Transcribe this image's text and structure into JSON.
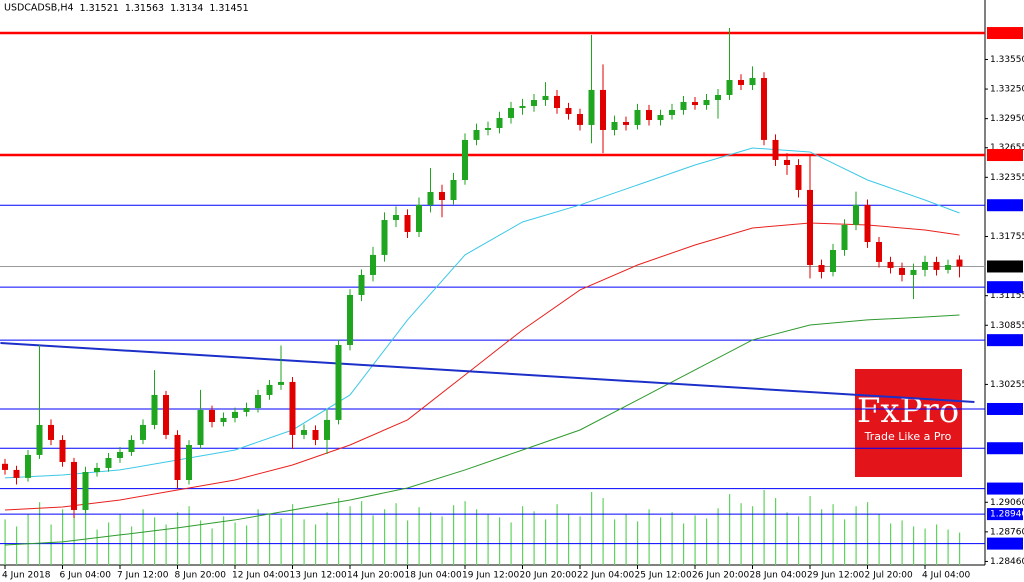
{
  "chart_data": {
    "type": "candlestick",
    "title": "USDCADSB,H4",
    "categories": [
      "4 Jun 2018",
      null,
      null,
      null,
      null,
      "6 Jun 04:00",
      null,
      null,
      null,
      null,
      "7 Jun 12:00",
      null,
      null,
      null,
      null,
      "8 Jun 20:00",
      null,
      null,
      null,
      null,
      "12 Jun 04:00",
      null,
      null,
      null,
      null,
      "13 Jun 12:00",
      null,
      null,
      null,
      null,
      "14 Jun 20:00",
      null,
      null,
      null,
      null,
      "18 Jun 04:00",
      null,
      null,
      null,
      null,
      "19 Jun 12:00",
      null,
      null,
      null,
      null,
      "20 Jun 20:00",
      null,
      null,
      null,
      null,
      "22 Jun 04:00",
      null,
      null,
      null,
      null,
      "25 Jun 12:00",
      null,
      null,
      null,
      null,
      "26 Jun 20:00",
      null,
      null,
      null,
      null,
      "28 Jun 04:00",
      null,
      null,
      null,
      null,
      "29 Jun 12:00",
      null,
      null,
      null,
      null,
      "2 Jul 20:00",
      null,
      null,
      null,
      null,
      "4 Jul 04:00",
      null,
      null,
      null
    ],
    "open": [
      1.2945,
      1.29388,
      1.29307,
      1.2954,
      1.29844,
      1.29692,
      1.29469,
      1.28982,
      1.29367,
      1.29408,
      1.29509,
      1.2957,
      1.29692,
      1.29844,
      1.30148,
      1.29743,
      1.29286,
      1.29641,
      1.29996,
      1.29874,
      1.29915,
      1.29976,
      1.30016,
      1.30148,
      1.3025,
      1.3028,
      1.29743,
      1.29793,
      1.29692,
      1.29895,
      1.30655,
      1.31162,
      1.31365,
      1.31568,
      1.31922,
      1.31973,
      1.31801,
      1.32075,
      1.32206,
      1.32125,
      1.32328,
      1.32734,
      1.32835,
      1.32855,
      1.32957,
      1.33058,
      1.33078,
      1.33139,
      1.3318,
      1.33058,
      1.32997,
      1.32886,
      1.33241,
      1.32835,
      1.32916,
      1.32886,
      1.33038,
      1.32936,
      1.32987,
      1.33038,
      1.33119,
      1.33088,
      1.33139,
      1.3319,
      1.33342,
      1.33291,
      1.33362,
      1.32734,
      1.32531,
      1.3248,
      1.32227,
      1.31466,
      1.31395,
      1.31618,
      1.31872,
      1.32075,
      1.31699,
      1.31497,
      1.31436,
      1.31365,
      1.31416,
      1.31497,
      1.31416,
      1.31521
    ],
    "high": [
      1.295,
      1.2943,
      1.2959,
      1.30655,
      1.299,
      1.2974,
      1.2951,
      1.2942,
      1.2946,
      1.2956,
      1.2962,
      1.2974,
      1.299,
      1.304,
      1.3019,
      1.2979,
      1.2969,
      1.302,
      1.3004,
      1.2997,
      1.3002,
      1.3007,
      1.302,
      1.303,
      1.3065,
      1.3033,
      1.2985,
      1.2984,
      1.3,
      1.3071,
      1.3122,
      1.3142,
      1.3165,
      1.32,
      1.3206,
      1.3203,
      1.3215,
      1.3245,
      1.3228,
      1.324,
      1.328,
      1.329,
      1.3292,
      1.3302,
      1.3312,
      1.3315,
      1.332,
      1.3332,
      1.3324,
      1.3311,
      1.3305,
      1.338,
      1.335,
      1.3298,
      1.3297,
      1.331,
      1.3309,
      1.3304,
      1.331,
      1.3318,
      1.3317,
      1.332,
      1.3325,
      1.33869,
      1.334,
      1.3348,
      1.3342,
      1.3279,
      1.326,
      1.3254,
      1.3258,
      1.3152,
      1.3168,
      1.3193,
      1.3221,
      1.3213,
      1.3175,
      1.3155,
      1.3149,
      1.3148,
      1.3156,
      1.3155,
      1.3152,
      1.31563
    ],
    "low": [
      1.2934,
      1.2924,
      1.2927,
      1.295,
      1.2964,
      1.2942,
      1.289,
      1.2894,
      1.2932,
      1.2937,
      1.2946,
      1.2953,
      1.2965,
      1.298,
      1.297,
      1.292,
      1.2924,
      1.296,
      1.2982,
      1.2983,
      1.2987,
      1.2993,
      1.2997,
      1.301,
      1.302,
      1.296,
      1.297,
      1.2964,
      1.2955,
      1.2985,
      1.306,
      1.311,
      1.313,
      1.315,
      1.3185,
      1.3174,
      1.3175,
      1.32,
      1.3195,
      1.3208,
      1.3228,
      1.3268,
      1.3278,
      1.328,
      1.329,
      1.3299,
      1.3302,
      1.3308,
      1.33,
      1.3294,
      1.3283,
      1.327,
      1.326,
      1.3278,
      1.3283,
      1.3284,
      1.3288,
      1.3288,
      1.3294,
      1.3299,
      1.3304,
      1.3304,
      1.3295,
      1.3314,
      1.3324,
      1.3324,
      1.3268,
      1.3247,
      1.3238,
      1.3215,
      1.3133,
      1.3133,
      1.3135,
      1.3156,
      1.3182,
      1.3164,
      1.3144,
      1.3138,
      1.313,
      1.3112,
      1.3135,
      1.3136,
      1.3138,
      1.3134
    ],
    "close": [
      1.29388,
      1.29307,
      1.2954,
      1.29844,
      1.29692,
      1.29469,
      1.28982,
      1.29367,
      1.29408,
      1.29509,
      1.2957,
      1.29692,
      1.29844,
      1.30148,
      1.29743,
      1.29286,
      1.29641,
      1.29996,
      1.29874,
      1.29915,
      1.29976,
      1.30016,
      1.30148,
      1.3025,
      1.3028,
      1.29743,
      1.29793,
      1.29692,
      1.29895,
      1.30655,
      1.31162,
      1.31365,
      1.31568,
      1.31922,
      1.31973,
      1.31801,
      1.32075,
      1.32206,
      1.32125,
      1.32328,
      1.32734,
      1.32835,
      1.32855,
      1.32957,
      1.33058,
      1.33078,
      1.33139,
      1.3318,
      1.33058,
      1.32997,
      1.32886,
      1.33241,
      1.32835,
      1.32916,
      1.32886,
      1.33038,
      1.32936,
      1.32987,
      1.33038,
      1.33119,
      1.33088,
      1.33139,
      1.3319,
      1.33342,
      1.33291,
      1.33362,
      1.32734,
      1.32531,
      1.3248,
      1.32227,
      1.31466,
      1.31395,
      1.31618,
      1.31872,
      1.32075,
      1.31699,
      1.31497,
      1.31436,
      1.31365,
      1.31416,
      1.31497,
      1.31416,
      1.31466,
      1.31451
    ],
    "up_color": "#1fa51f",
    "down_color": "#e00000",
    "volume": [
      45,
      38,
      50,
      62,
      40,
      55,
      48,
      60,
      35,
      42,
      50,
      38,
      55,
      47,
      40,
      52,
      58,
      44,
      36,
      48,
      42,
      39,
      55,
      50,
      46,
      60,
      45,
      40,
      52,
      66,
      58,
      63,
      49,
      55,
      61,
      44,
      57,
      52,
      48,
      59,
      63,
      55,
      50,
      47,
      42,
      58,
      53,
      45,
      60,
      50,
      48,
      72,
      66,
      45,
      50,
      43,
      55,
      47,
      52,
      41,
      49,
      46,
      56,
      70,
      61,
      58,
      74,
      66,
      52,
      48,
      68,
      55,
      60,
      45,
      58,
      62,
      50,
      41,
      44,
      38,
      36,
      40,
      35,
      32
    ],
    "volume_color": "#5fd35f",
    "indicators": [
      {
        "color": "#3cc8e6",
        "x": [
          0,
          5,
          10,
          15,
          20,
          25,
          30,
          35,
          40,
          45,
          50,
          55,
          60,
          65,
          70,
          75,
          80,
          83
        ],
        "values": [
          1.29307,
          1.29337,
          1.29388,
          1.29489,
          1.2959,
          1.29793,
          1.30148,
          1.30909,
          1.31568,
          1.31902,
          1.32075,
          1.32277,
          1.3248,
          1.32652,
          1.32612,
          1.32328,
          1.32125,
          1.31993
        ]
      },
      {
        "color": "#e8211d",
        "x": [
          0,
          5,
          10,
          15,
          20,
          25,
          30,
          35,
          40,
          45,
          50,
          55,
          60,
          65,
          70,
          75,
          80,
          83
        ],
        "values": [
          1.28982,
          1.29012,
          1.29083,
          1.29185,
          1.29286,
          1.29438,
          1.29641,
          1.29895,
          1.30351,
          1.30807,
          1.31213,
          1.31466,
          1.31669,
          1.31841,
          1.31892,
          1.31872,
          1.31821,
          1.3177
        ]
      },
      {
        "color": "#2e9a2e",
        "x": [
          0,
          5,
          10,
          15,
          20,
          25,
          30,
          35,
          40,
          45,
          50,
          55,
          60,
          65,
          70,
          75,
          80,
          83
        ],
        "values": [
          1.28627,
          1.28658,
          1.28729,
          1.288,
          1.28881,
          1.28982,
          1.29083,
          1.29205,
          1.29388,
          1.2959,
          1.29793,
          1.30097,
          1.30402,
          1.30706,
          1.30858,
          1.30909,
          1.30939,
          1.30959
        ]
      }
    ],
    "trendline": {
      "color": "#1c2fc8",
      "x": [
        -0.4,
        84.3
      ],
      "values": [
        1.30675,
        1.30077
      ]
    },
    "levels": [
      {
        "value": 1.33818,
        "color": "#ff0000",
        "label_color": "#ff0000"
      },
      {
        "value": 1.32581,
        "color": "#ff0000",
        "label_color": "#ff0000"
      },
      {
        "value": 1.32072,
        "color": "#0000ff",
        "label_color": "#0000ff"
      },
      {
        "value": 1.31451,
        "color": "#9a9a9a",
        "label_color": "#000000"
      },
      {
        "value": 1.31241,
        "color": "#0000ff",
        "label_color": "#0000ff"
      },
      {
        "value": 1.30704,
        "color": "#0000ff",
        "label_color": "#0000ff"
      },
      {
        "value": 1.30006,
        "color": "#0000ff",
        "label_color": "#0000ff"
      },
      {
        "value": 1.29608,
        "color": "#0000ff",
        "label_color": "#0000ff"
      },
      {
        "value": 1.29199,
        "color": "#0000ff",
        "label_color": "#0000ff"
      },
      {
        "value": 1.2894,
        "label": "1.28940",
        "color": "#0000ff",
        "label_color": "#0000ff"
      },
      {
        "value": 1.28641,
        "color": "#0000ff",
        "label_color": "#0000ff"
      }
    ],
    "ylim": [
      1.28424,
      1.34153
    ],
    "yticks": [
      {
        "value": 1.3355,
        "label": "1.33550"
      },
      {
        "value": 1.3325,
        "label": "1.33250"
      },
      {
        "value": 1.3295,
        "label": "1.32950"
      },
      1.32655,
      1.32355,
      1.31755,
      1.31155,
      1.30855,
      1.30255,
      {
        "value": 1.2906,
        "label": "1.29060"
      },
      {
        "value": 1.2876,
        "label": "1.28760"
      },
      {
        "value": 1.2846,
        "label": "1.28460"
      }
    ],
    "logo": {
      "name": "FxPro",
      "tagline": "Trade Like a Pro",
      "color": "#e3151a"
    }
  }
}
